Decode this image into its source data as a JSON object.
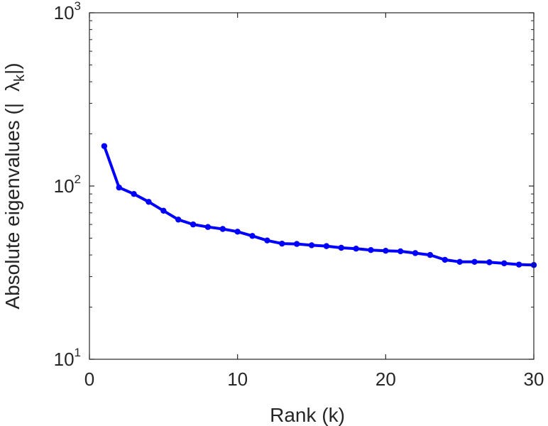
{
  "chart_data": {
    "type": "line",
    "xlabel": "Rank (k)",
    "ylabel": {
      "prefix": "Absolute eigenvalues (|",
      "symbol": "λ",
      "subscript": "k",
      "suffix": "|)"
    },
    "xlim": [
      0,
      30
    ],
    "ylim": [
      10,
      1000
    ],
    "yscale": "log",
    "grid": false,
    "color": "#0000ff",
    "x_ticks": [
      {
        "value": 0,
        "label": "0"
      },
      {
        "value": 10,
        "label": "10"
      },
      {
        "value": 20,
        "label": "20"
      },
      {
        "value": 30,
        "label": "30"
      }
    ],
    "y_ticks": [
      {
        "value": 10,
        "base": "10",
        "exp": "1"
      },
      {
        "value": 100,
        "base": "10",
        "exp": "2"
      },
      {
        "value": 1000,
        "base": "10",
        "exp": "3"
      }
    ],
    "series": [
      {
        "x": [
          1,
          2,
          3,
          4,
          5,
          6,
          7,
          8,
          9,
          10,
          11,
          12,
          13,
          14,
          15,
          16,
          17,
          18,
          19,
          20,
          21,
          22,
          23,
          24,
          25,
          26,
          27,
          28,
          29,
          30
        ],
        "values": [
          170,
          98,
          90,
          81,
          72,
          64,
          60,
          58,
          56.5,
          54.5,
          51.5,
          48.5,
          46.5,
          46.3,
          45.5,
          45,
          44,
          43.5,
          42.7,
          42.3,
          42,
          41,
          40,
          37.5,
          36.5,
          36.5,
          36.3,
          35.8,
          35.2,
          35
        ]
      }
    ]
  }
}
